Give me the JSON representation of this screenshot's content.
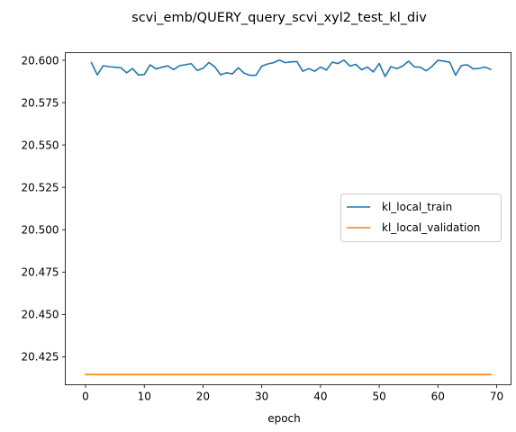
{
  "chart_data": {
    "type": "line",
    "title": "scvi_emb/QUERY_query_scvi_xyl2_test_kl_div",
    "xlabel": "epoch",
    "ylabel": "",
    "xlim": [
      -3.45,
      72.45
    ],
    "ylim": [
      20.4085,
      20.6045
    ],
    "xticks": [
      0,
      10,
      20,
      30,
      40,
      50,
      60,
      70
    ],
    "yticks": [
      20.425,
      20.45,
      20.475,
      20.5,
      20.525,
      20.55,
      20.575,
      20.6
    ],
    "ytick_labels": [
      "20.425",
      "20.450",
      "20.475",
      "20.500",
      "20.525",
      "20.550",
      "20.575",
      "20.600"
    ],
    "grid": false,
    "legend_position": "center-right",
    "series": [
      {
        "name": "kl_local_train",
        "color": "#1f77b4",
        "x": [
          1,
          2,
          3,
          4,
          5,
          6,
          7,
          8,
          9,
          10,
          11,
          12,
          13,
          14,
          15,
          16,
          17,
          18,
          19,
          20,
          21,
          22,
          23,
          24,
          25,
          26,
          27,
          28,
          29,
          30,
          31,
          32,
          33,
          34,
          35,
          36,
          37,
          38,
          39,
          40,
          41,
          42,
          43,
          44,
          45,
          46,
          47,
          48,
          49,
          50,
          51,
          52,
          53,
          54,
          55,
          56,
          57,
          58,
          59,
          60,
          61,
          62,
          63,
          64,
          65,
          66,
          67,
          68,
          69
        ],
        "values": [
          20.5986,
          20.5914,
          20.5968,
          20.5962,
          20.5959,
          20.5956,
          20.5926,
          20.5951,
          20.5913,
          20.5916,
          20.5973,
          20.5949,
          20.5959,
          20.5967,
          20.5945,
          20.5968,
          20.5974,
          20.598,
          20.594,
          20.5953,
          20.5987,
          20.5961,
          20.5914,
          20.5926,
          20.592,
          20.5956,
          20.5924,
          20.5911,
          20.5911,
          20.5965,
          20.5978,
          20.5986,
          20.6001,
          20.5986,
          20.5991,
          20.5992,
          20.5935,
          20.5951,
          20.5935,
          20.596,
          20.5942,
          20.5989,
          20.5981,
          20.6001,
          20.5966,
          20.5976,
          20.5944,
          20.596,
          20.5931,
          20.5981,
          20.5904,
          20.5963,
          20.595,
          20.5966,
          20.5995,
          20.5961,
          20.5959,
          20.5938,
          20.5964,
          20.6,
          20.5995,
          20.5989,
          20.5912,
          20.5969,
          20.5974,
          20.5949,
          20.5952,
          20.596,
          20.5946
        ]
      },
      {
        "name": "kl_local_validation",
        "color": "#ff7f0e",
        "x": [
          0,
          69
        ],
        "values": [
          20.4145,
          20.4145
        ]
      }
    ]
  }
}
